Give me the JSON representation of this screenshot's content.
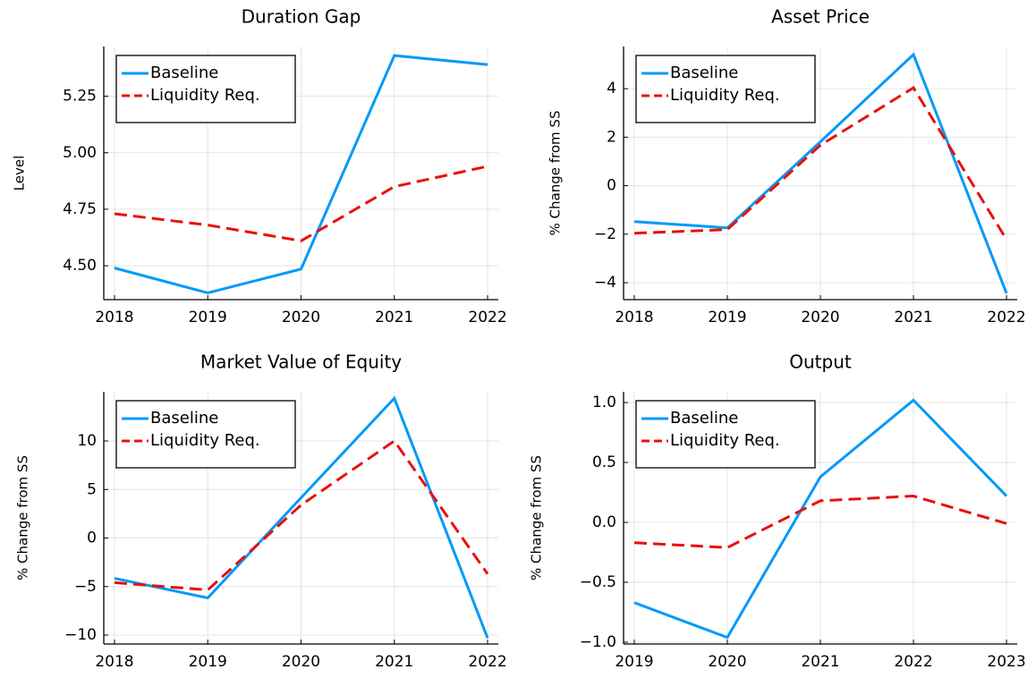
{
  "chart_data": [
    {
      "type": "line",
      "title": "Duration Gap",
      "ylabel": "Level",
      "x": [
        2018,
        2019,
        2020,
        2021,
        2022
      ],
      "xlim": [
        2017.885,
        2022.115
      ],
      "xticks": [
        2018,
        2019,
        2020,
        2021,
        2022
      ],
      "ylim": [
        4.35,
        5.47
      ],
      "yticks": [
        {
          "value": 4.5,
          "label": "4.50"
        },
        {
          "value": 4.75,
          "label": "4.75"
        },
        {
          "value": 5.0,
          "label": "5.00"
        },
        {
          "value": 5.25,
          "label": "5.25"
        }
      ],
      "grid": true,
      "legend": "top-left",
      "series": [
        {
          "name": "Baseline",
          "color": "#009af9",
          "line_style": "solid",
          "values": [
            4.49,
            4.38,
            4.485,
            5.43,
            5.39
          ]
        },
        {
          "name": "Liquidity Req.",
          "color": "#e8110f",
          "line_style": "dash",
          "values": [
            4.73,
            4.68,
            4.61,
            4.85,
            4.94
          ]
        }
      ]
    },
    {
      "type": "line",
      "title": "Asset Price",
      "ylabel": "% Change from SS",
      "x": [
        2018,
        2019,
        2020,
        2021,
        2022
      ],
      "xlim": [
        2017.885,
        2022.115
      ],
      "xticks": [
        2018,
        2019,
        2020,
        2021,
        2022
      ],
      "ylim": [
        -4.7,
        5.74
      ],
      "yticks": [
        {
          "value": -4,
          "label": "−4"
        },
        {
          "value": -2,
          "label": "−2"
        },
        0,
        2,
        4
      ],
      "grid": true,
      "legend": "top-left",
      "series": [
        {
          "name": "Baseline",
          "color": "#009af9",
          "line_style": "solid",
          "values": [
            -1.48,
            -1.74,
            1.81,
            5.41,
            -4.44
          ]
        },
        {
          "name": "Liquidity Req.",
          "color": "#e8110f",
          "line_style": "dash",
          "values": [
            -1.96,
            -1.81,
            1.67,
            4.04,
            -2.22
          ]
        }
      ]
    },
    {
      "type": "line",
      "title": "Market Value of Equity",
      "ylabel": "% Change from SS",
      "x": [
        2018,
        2019,
        2020,
        2021,
        2022
      ],
      "xlim": [
        2017.885,
        2022.115
      ],
      "xticks": [
        2018,
        2019,
        2020,
        2021,
        2022
      ],
      "ylim": [
        -10.92,
        15.07
      ],
      "yticks": [
        {
          "value": -10,
          "label": "−10"
        },
        {
          "value": -5,
          "label": "−5"
        },
        0,
        5,
        10
      ],
      "grid": true,
      "legend": "top-left",
      "series": [
        {
          "name": "Baseline",
          "color": "#009af9",
          "line_style": "solid",
          "values": [
            -4.15,
            -6.17,
            4.15,
            14.4,
            -10.3
          ]
        },
        {
          "name": "Liquidity Req.",
          "color": "#e8110f",
          "line_style": "dash",
          "values": [
            -4.6,
            -5.35,
            3.4,
            10.0,
            -3.7
          ]
        }
      ]
    },
    {
      "type": "line",
      "title": "Output",
      "ylabel": "% Change from SS",
      "x": [
        2019,
        2020,
        2021,
        2022,
        2023
      ],
      "xlim": [
        2018.885,
        2023.115
      ],
      "xticks": [
        2019,
        2020,
        2021,
        2022,
        2023
      ],
      "ylim": [
        -1.015,
        1.09
      ],
      "yticks": [
        {
          "value": -1.0,
          "label": "−1.0"
        },
        {
          "value": -0.5,
          "label": "−0.5"
        },
        {
          "value": 0.0,
          "label": "0.0"
        },
        {
          "value": 0.5,
          "label": "0.5"
        },
        {
          "value": 1.0,
          "label": "1.0"
        }
      ],
      "grid": true,
      "legend": "top-left",
      "series": [
        {
          "name": "Baseline",
          "color": "#009af9",
          "line_style": "solid",
          "values": [
            -0.67,
            -0.96,
            0.38,
            1.02,
            0.22
          ]
        },
        {
          "name": "Liquidity Req.",
          "color": "#e8110f",
          "line_style": "dash",
          "values": [
            -0.17,
            -0.21,
            0.18,
            0.22,
            -0.01
          ]
        }
      ]
    }
  ]
}
